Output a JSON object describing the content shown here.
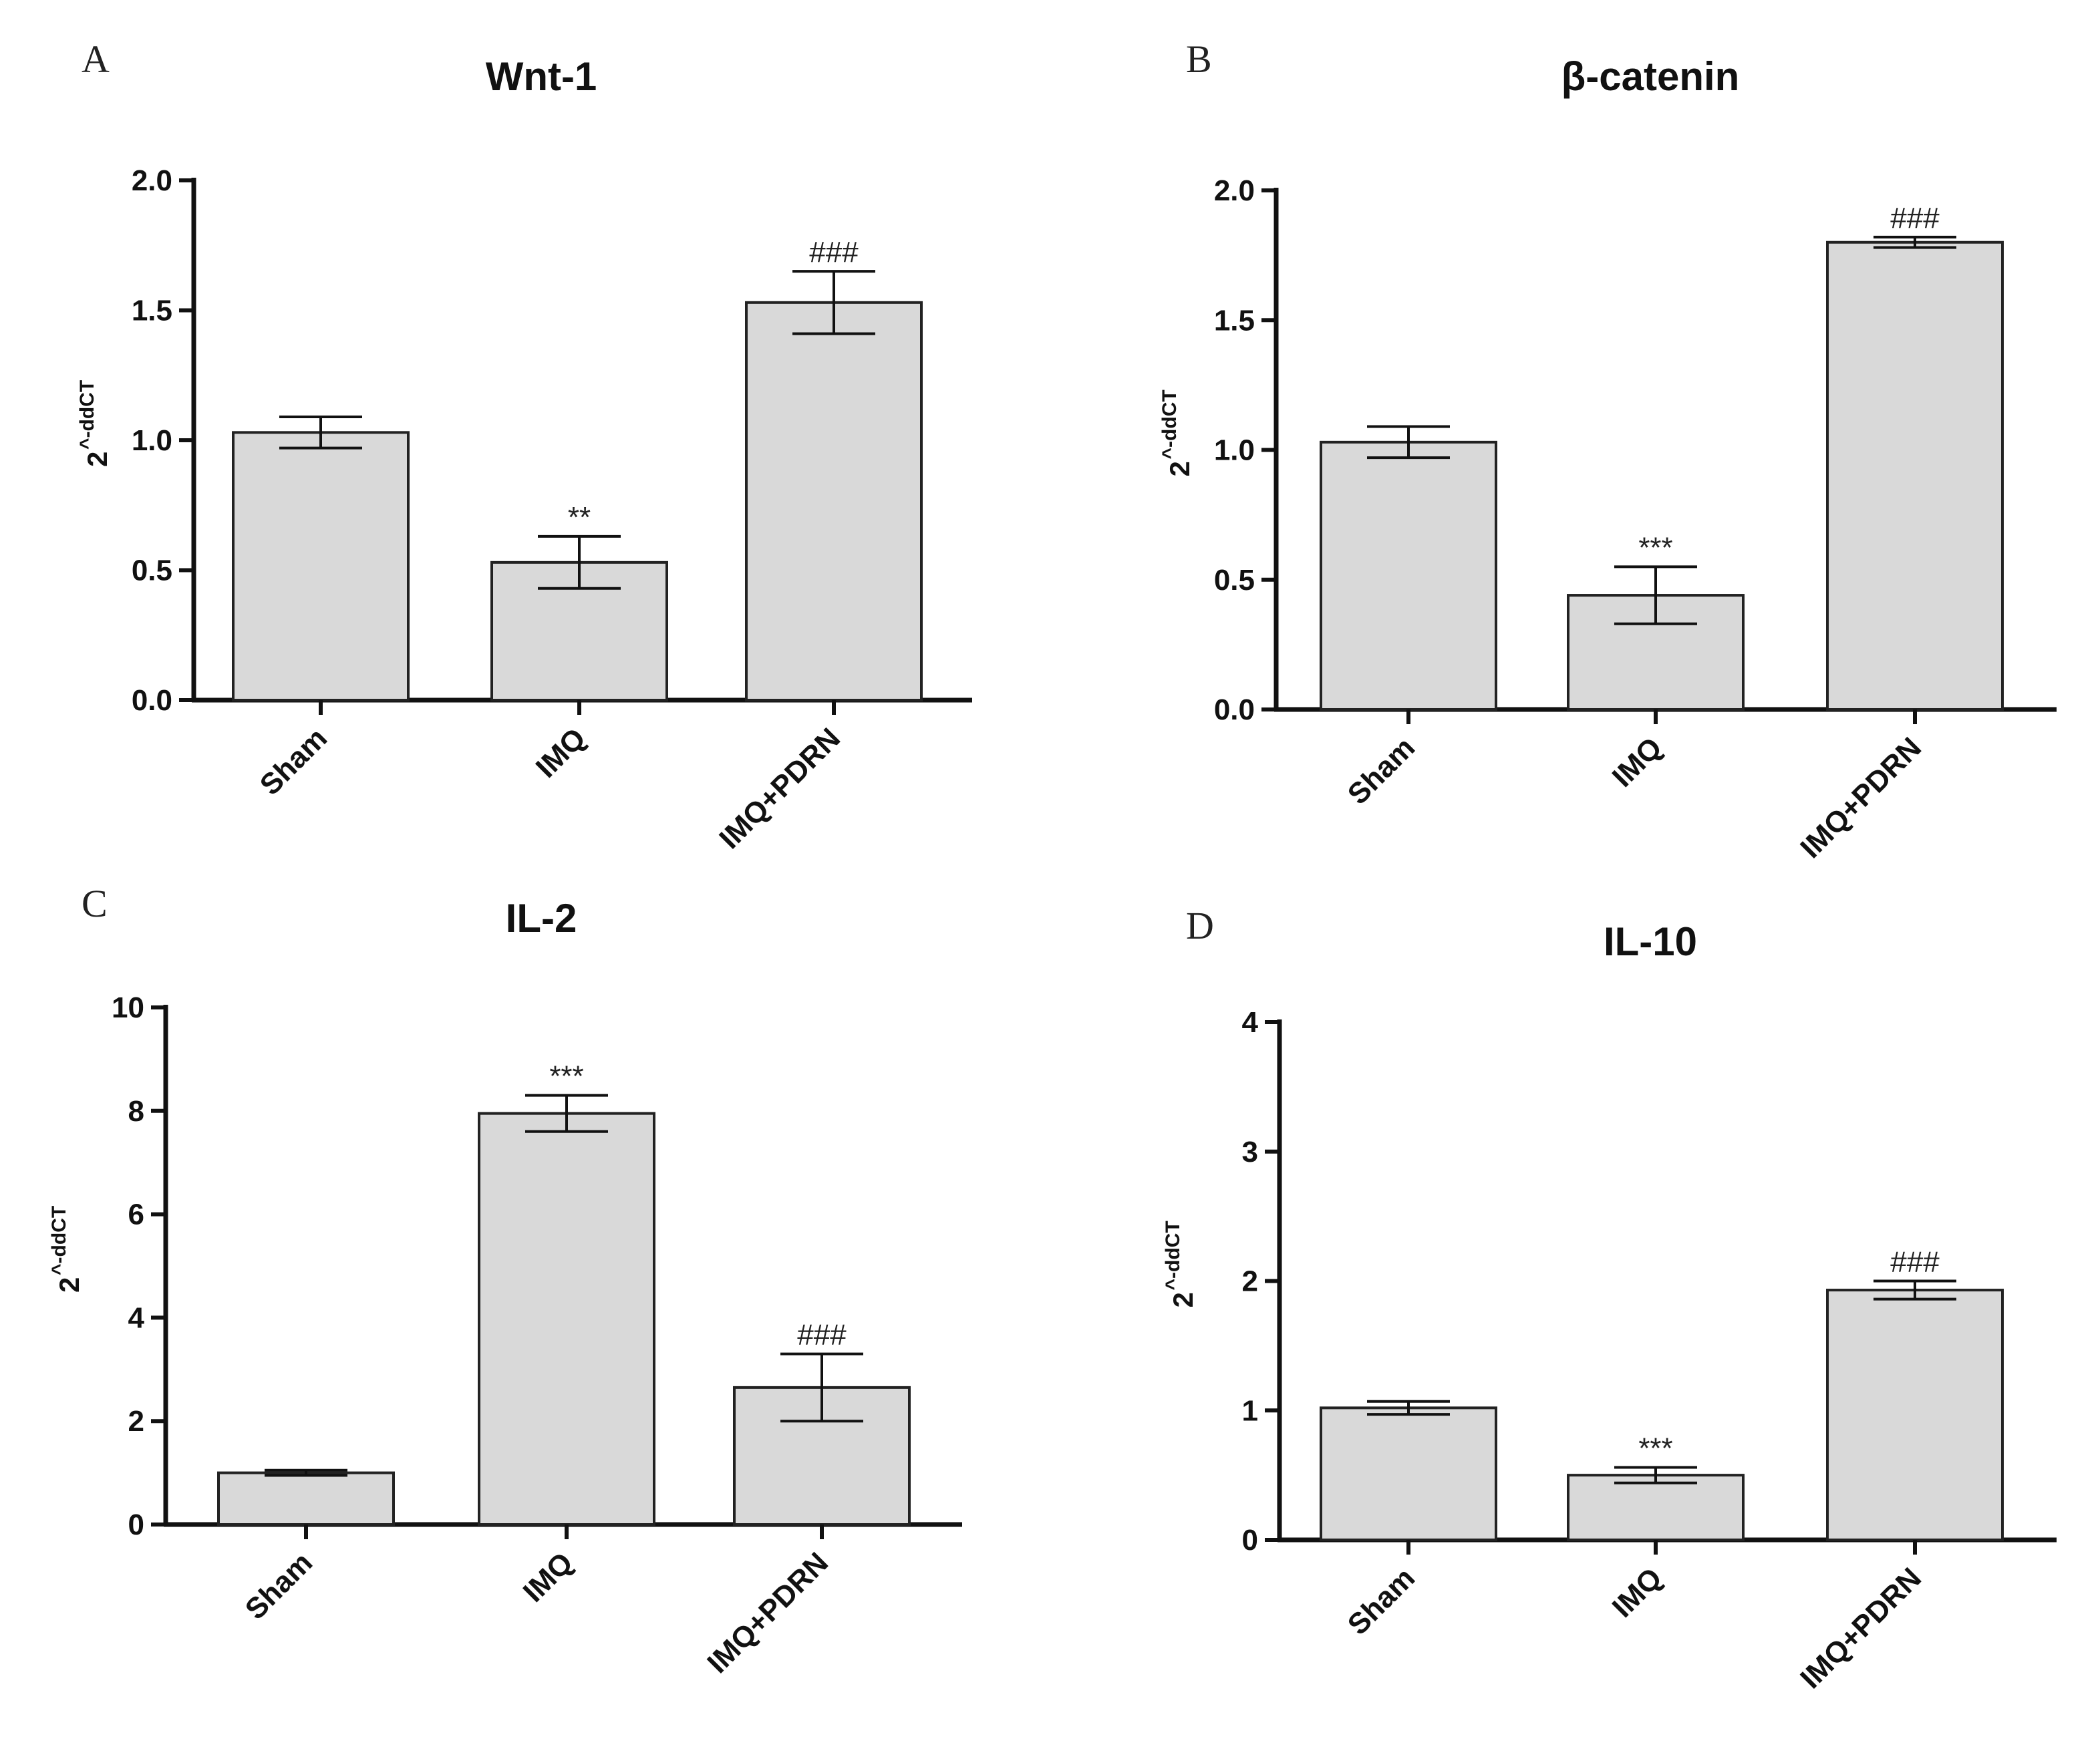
{
  "chart_data": [
    {
      "panel": "A",
      "type": "bar",
      "title": "Wnt-1",
      "ylabel_base": "2",
      "ylabel_exp": "^-ddCT",
      "ylim": [
        0,
        2.0
      ],
      "yticks": [
        "0.0",
        "0.5",
        "1.0",
        "1.5",
        "2.0"
      ],
      "categories": [
        "Sham",
        "IMQ",
        "IMQ+PDRN"
      ],
      "values": [
        1.03,
        0.53,
        1.53
      ],
      "errors": [
        0.06,
        0.1,
        0.12
      ],
      "significance": [
        "",
        "**",
        "###"
      ]
    },
    {
      "panel": "B",
      "type": "bar",
      "title": "β-catenin",
      "ylabel_base": "2",
      "ylabel_exp": "^-ddCT",
      "ylim": [
        0,
        2.0
      ],
      "yticks": [
        "0.0",
        "0.5",
        "1.0",
        "1.5",
        "2.0"
      ],
      "categories": [
        "Sham",
        "IMQ",
        "IMQ+PDRN"
      ],
      "values": [
        1.03,
        0.44,
        1.8
      ],
      "errors": [
        0.06,
        0.11,
        0.02
      ],
      "significance": [
        "",
        "***",
        "###"
      ]
    },
    {
      "panel": "C",
      "type": "bar",
      "title": "IL-2",
      "ylabel_base": "2",
      "ylabel_exp": "^-ddCT",
      "ylim": [
        0,
        10
      ],
      "yticks": [
        "0",
        "2",
        "4",
        "6",
        "8",
        "10"
      ],
      "categories": [
        "Sham",
        "IMQ",
        "IMQ+PDRN"
      ],
      "values": [
        1.0,
        7.95,
        2.65
      ],
      "errors": [
        0.05,
        0.35,
        0.65
      ],
      "significance": [
        "",
        "***",
        "###"
      ]
    },
    {
      "panel": "D",
      "type": "bar",
      "title": "IL-10",
      "ylabel_base": "2",
      "ylabel_exp": "^-ddCT",
      "ylim": [
        0,
        4
      ],
      "yticks": [
        "0",
        "1",
        "2",
        "3",
        "4"
      ],
      "categories": [
        "Sham",
        "IMQ",
        "IMQ+PDRN"
      ],
      "values": [
        1.02,
        0.5,
        1.93
      ],
      "errors": [
        0.05,
        0.06,
        0.07
      ],
      "significance": [
        "",
        "***",
        "###"
      ]
    }
  ]
}
